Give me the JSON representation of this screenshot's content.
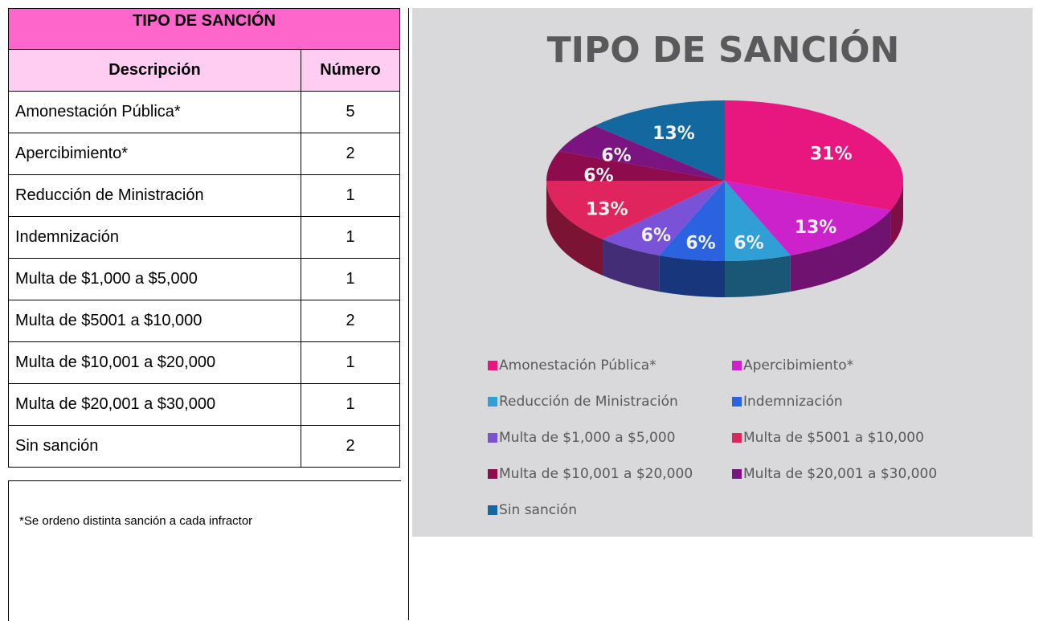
{
  "table": {
    "title": "TIPO DE SANCIÓN",
    "headers": [
      "Descripción",
      "Número"
    ],
    "rows": [
      [
        "Amonestación Pública*",
        "5"
      ],
      [
        "Apercibimiento*",
        "2"
      ],
      [
        "Reducción de Ministración",
        "1"
      ],
      [
        "Indemnización",
        "1"
      ],
      [
        "Multa de $1,000 a $5,000",
        "1"
      ],
      [
        "Multa de $5001 a $10,000",
        "2"
      ],
      [
        "Multa de $10,001 a $20,000",
        "1"
      ],
      [
        "Multa de $20,001 a $30,000",
        "1"
      ],
      [
        "Sin sanción",
        "2"
      ]
    ],
    "note": "*Se ordeno distinta sanción a cada infractor"
  },
  "chart_data": {
    "type": "pie",
    "title": "TIPO DE SANCIÓN",
    "categories": [
      "Amonestación Pública*",
      "Apercibimiento*",
      "Reducción de Ministración",
      "Indemnización",
      "Multa de $1,000 a $5,000",
      "Multa de $5001 a $10,000",
      "Multa de $10,001 a $20,000",
      "Multa de $20,001 a $30,000",
      "Sin sanción"
    ],
    "values": [
      31,
      13,
      6,
      6,
      6,
      13,
      6,
      6,
      13
    ],
    "value_labels": [
      "31%",
      "13%",
      "6%",
      "6%",
      "6%",
      "13%",
      "6%",
      "6%",
      "13%"
    ],
    "colors": [
      "#e8177f",
      "#cc22cc",
      "#2f9fd6",
      "#2a62e0",
      "#7a52d8",
      "#e0245e",
      "#8e0b4e",
      "#7b1480",
      "#13699f"
    ]
  }
}
